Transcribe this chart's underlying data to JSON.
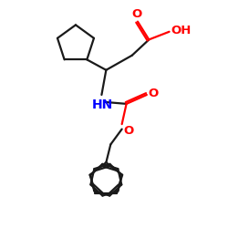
{
  "background": "#ffffff",
  "bond_color": "#1a1a1a",
  "o_color": "#ff0000",
  "n_color": "#0000ff",
  "linewidth": 1.6,
  "font_size": 9.5,
  "fig_size": [
    2.5,
    2.5
  ],
  "dpi": 100,
  "xlim": [
    0,
    10
  ],
  "ylim": [
    0,
    10
  ]
}
